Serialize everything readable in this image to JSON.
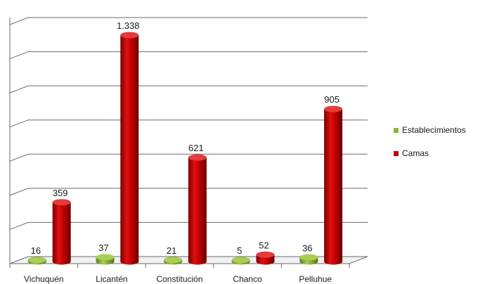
{
  "chart_data": {
    "type": "bar",
    "title": "",
    "xlabel": "",
    "ylabel": "",
    "categories": [
      "Vichuquén",
      "Licantén",
      "Constitución",
      "Chanco",
      "Pelluhue"
    ],
    "series": [
      {
        "name": "Establecimientos",
        "color": "#8db33a",
        "values": [
          16,
          37,
          21,
          5,
          36
        ],
        "labels": [
          "16",
          "37",
          "21",
          "5",
          "36"
        ]
      },
      {
        "name": "Camas",
        "color": "#c00000",
        "values": [
          359,
          1338,
          621,
          52,
          905
        ],
        "labels": [
          "359",
          "1.338",
          "621",
          "52",
          "905"
        ]
      }
    ],
    "ylim": [
      0,
      1400
    ],
    "grid": true,
    "legend_position": "right",
    "style": "3d-cylinder"
  }
}
